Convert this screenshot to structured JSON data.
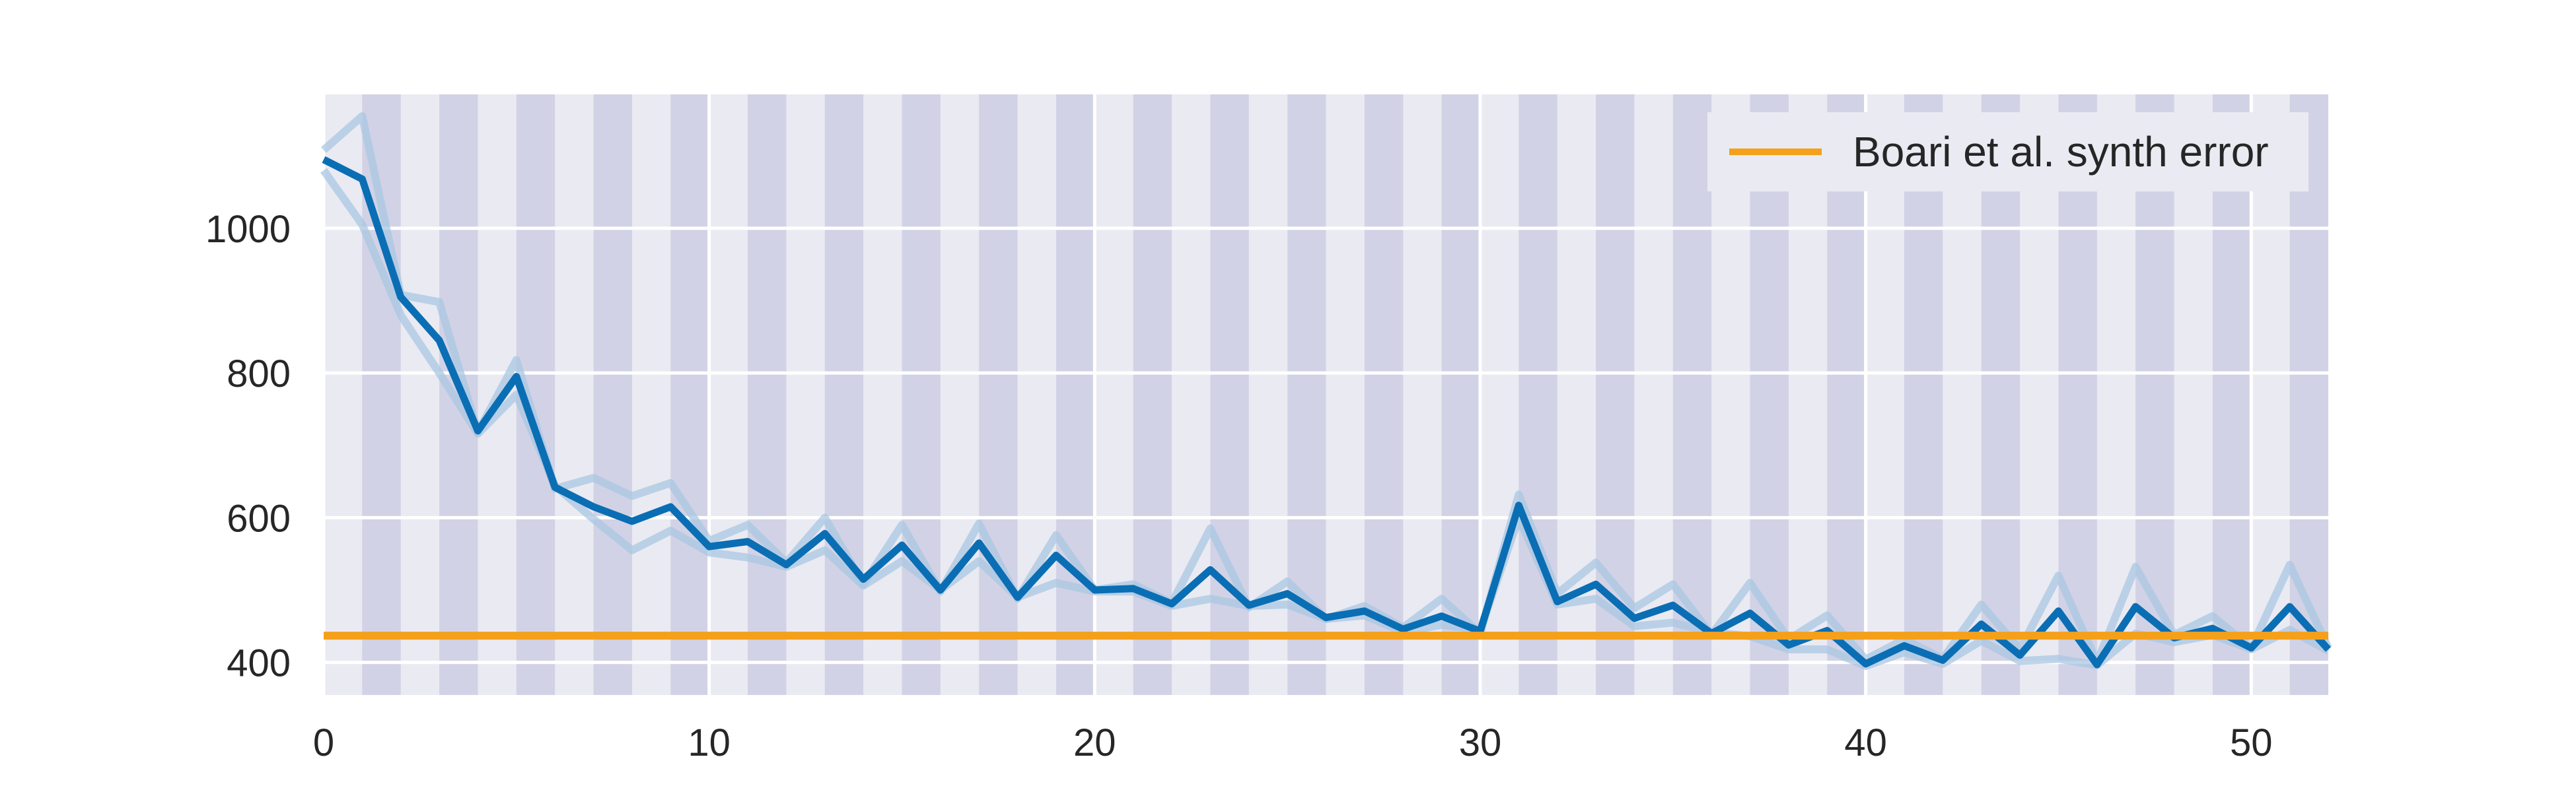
{
  "chart_data": {
    "type": "line",
    "title": "",
    "xlabel": "",
    "ylabel": "",
    "xlim": [
      0,
      52
    ],
    "ylim": [
      355,
      1185
    ],
    "x_ticks": [
      0,
      10,
      20,
      30,
      40,
      50
    ],
    "x_tick_labels": [
      "0",
      "10",
      "20",
      "30",
      "40",
      "50"
    ],
    "y_ticks": [
      400,
      600,
      800,
      1000
    ],
    "y_tick_labels": [
      "400",
      "600",
      "800",
      "1000"
    ],
    "grid": true,
    "shaded_bands": "odd unit intervals [1,2], [3,4], ... [51,52]",
    "legend": {
      "position": "top-right",
      "entries": [
        "Boari et al. synth error"
      ]
    },
    "colors": {
      "background": "#eaeaf2",
      "band": "#d2d2e6",
      "grid": "#ffffff",
      "main_line": "#0a6eb4",
      "faint_line": "#a9c7e2",
      "reference_line": "#f5a01a"
    },
    "reference_line": {
      "name": "Boari et al. synth error",
      "value": 437
    },
    "series": [
      {
        "role": "mean",
        "x": [
          0,
          1,
          2,
          3,
          4,
          5,
          6,
          7,
          8,
          9,
          10,
          11,
          12,
          13,
          14,
          15,
          16,
          17,
          18,
          19,
          20,
          21,
          22,
          23,
          24,
          25,
          26,
          27,
          28,
          29,
          30,
          31,
          32,
          33,
          34,
          35,
          36,
          37,
          38,
          39,
          40,
          41,
          42,
          43,
          44,
          45,
          46,
          47,
          48,
          49,
          50,
          51,
          52
        ],
        "values": [
          1095,
          1068,
          905,
          845,
          720,
          795,
          642,
          615,
          595,
          615,
          560,
          567,
          535,
          578,
          515,
          562,
          500,
          565,
          490,
          548,
          500,
          502,
          481,
          528,
          479,
          495,
          462,
          471,
          446,
          464,
          443,
          617,
          484,
          508,
          461,
          479,
          440,
          468,
          424,
          444,
          398,
          423,
          403,
          453,
          410,
          471,
          397,
          477,
          434,
          447,
          420,
          477,
          418
        ]
      },
      {
        "role": "run",
        "values": [
          1108,
          1155,
          908,
          898,
          718,
          818,
          640,
          655,
          630,
          648,
          568,
          590,
          538,
          600,
          508,
          590,
          498,
          592,
          488,
          576,
          500,
          508,
          482,
          585,
          476,
          512,
          460,
          478,
          448,
          488,
          440,
          632,
          495,
          538,
          475,
          508,
          438,
          510,
          432,
          465,
          404,
          432,
          405,
          480,
          418,
          520,
          400,
          532,
          438,
          464,
          420,
          535,
          420
        ]
      },
      {
        "role": "run",
        "values": [
          1080,
          1005,
          880,
          800,
          716,
          770,
          644,
          598,
          555,
          582,
          552,
          545,
          532,
          555,
          506,
          540,
          500,
          540,
          490,
          510,
          498,
          498,
          478,
          488,
          478,
          480,
          460,
          465,
          442,
          452,
          445,
          600,
          480,
          488,
          450,
          455,
          442,
          436,
          418,
          418,
          395,
          414,
          398,
          430,
          402,
          405,
          396,
          440,
          428,
          438,
          418,
          445,
          416
        ]
      }
    ]
  }
}
